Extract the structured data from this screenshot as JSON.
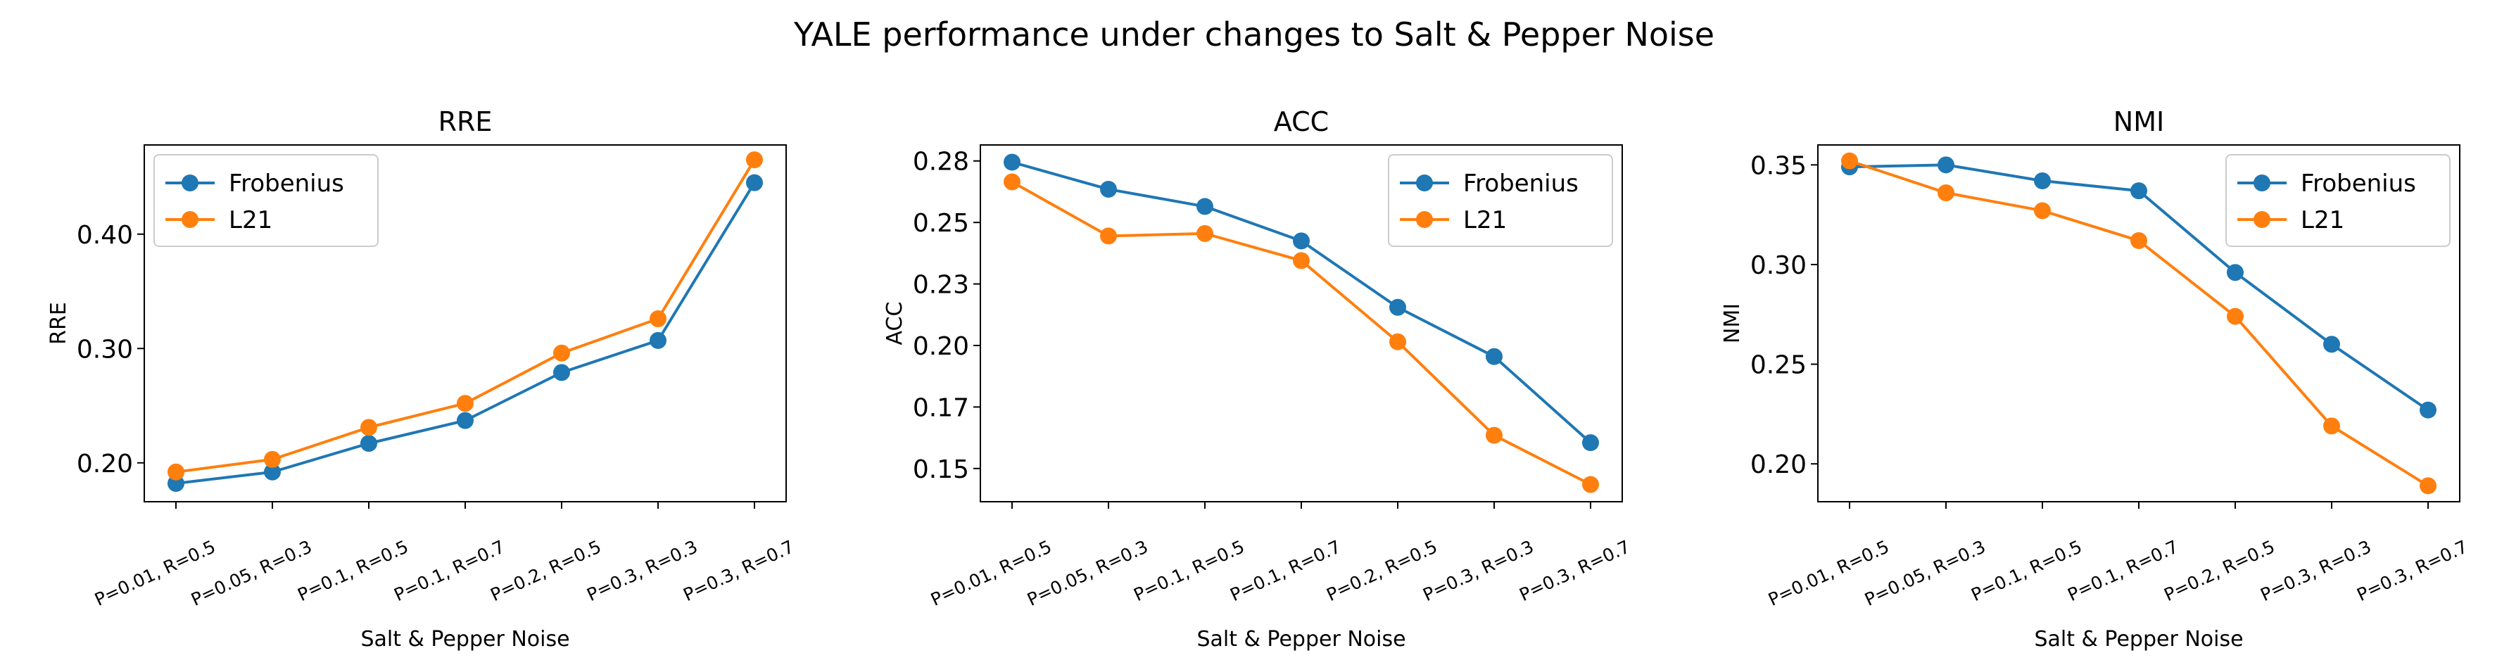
{
  "figure": {
    "title": "YALE performance under changes to Salt & Pepper Noise"
  },
  "colors": {
    "Frobenius": "#1f77b4",
    "L21": "#ff7f0e"
  },
  "chart_data": [
    {
      "type": "line",
      "title": "RRE",
      "xlabel": "Salt & Pepper Noise",
      "ylabel": "RRE",
      "categories": [
        "P=0.01, R=0.5",
        "P=0.05, R=0.3",
        "P=0.1, R=0.5",
        "P=0.1, R=0.7",
        "P=0.2, R=0.5",
        "P=0.3, R=0.3",
        "P=0.3, R=0.7"
      ],
      "ylim": [
        0.166,
        0.478
      ],
      "yticks": [
        0.2,
        0.3,
        0.4
      ],
      "ytick_labels": [
        "0.20",
        "0.30",
        "0.40"
      ],
      "legend": "upper left",
      "series": [
        {
          "name": "Frobenius",
          "values": [
            0.182,
            0.192,
            0.217,
            0.237,
            0.279,
            0.307,
            0.445
          ]
        },
        {
          "name": "L21",
          "values": [
            0.192,
            0.203,
            0.231,
            0.252,
            0.296,
            0.326,
            0.465
          ]
        }
      ]
    },
    {
      "type": "line",
      "title": "ACC",
      "xlabel": "Salt & Pepper Noise",
      "ylabel": "ACC",
      "categories": [
        "P=0.01, R=0.5",
        "P=0.05, R=0.3",
        "P=0.1, R=0.5",
        "P=0.1, R=0.7",
        "P=0.2, R=0.5",
        "P=0.3, R=0.3",
        "P=0.3, R=0.7"
      ],
      "ylim": [
        0.1365,
        0.2815
      ],
      "yticks": [
        0.15,
        0.175,
        0.2,
        0.225,
        0.25,
        0.275
      ],
      "ytick_labels": [
        "0.15",
        "0.17",
        "0.20",
        "0.23",
        "0.25",
        "0.28"
      ],
      "legend": "upper right",
      "series": [
        {
          "name": "Frobenius",
          "values": [
            0.2745,
            0.2635,
            0.2565,
            0.2425,
            0.2155,
            0.1955,
            0.1605
          ]
        },
        {
          "name": "L21",
          "values": [
            0.2665,
            0.2445,
            0.2455,
            0.2345,
            0.2015,
            0.1635,
            0.1435
          ]
        }
      ]
    },
    {
      "type": "line",
      "title": "NMI",
      "xlabel": "Salt & Pepper Noise",
      "ylabel": "NMI",
      "categories": [
        "P=0.01, R=0.5",
        "P=0.05, R=0.3",
        "P=0.1, R=0.5",
        "P=0.1, R=0.7",
        "P=0.2, R=0.5",
        "P=0.3, R=0.3",
        "P=0.3, R=0.7"
      ],
      "ylim": [
        0.181,
        0.36
      ],
      "yticks": [
        0.2,
        0.25,
        0.3,
        0.35
      ],
      "ytick_labels": [
        "0.20",
        "0.25",
        "0.30",
        "0.35"
      ],
      "legend": "upper right",
      "series": [
        {
          "name": "Frobenius",
          "values": [
            0.349,
            0.35,
            0.342,
            0.337,
            0.296,
            0.26,
            0.227
          ]
        },
        {
          "name": "L21",
          "values": [
            0.352,
            0.336,
            0.327,
            0.312,
            0.274,
            0.219,
            0.189
          ]
        }
      ]
    }
  ]
}
